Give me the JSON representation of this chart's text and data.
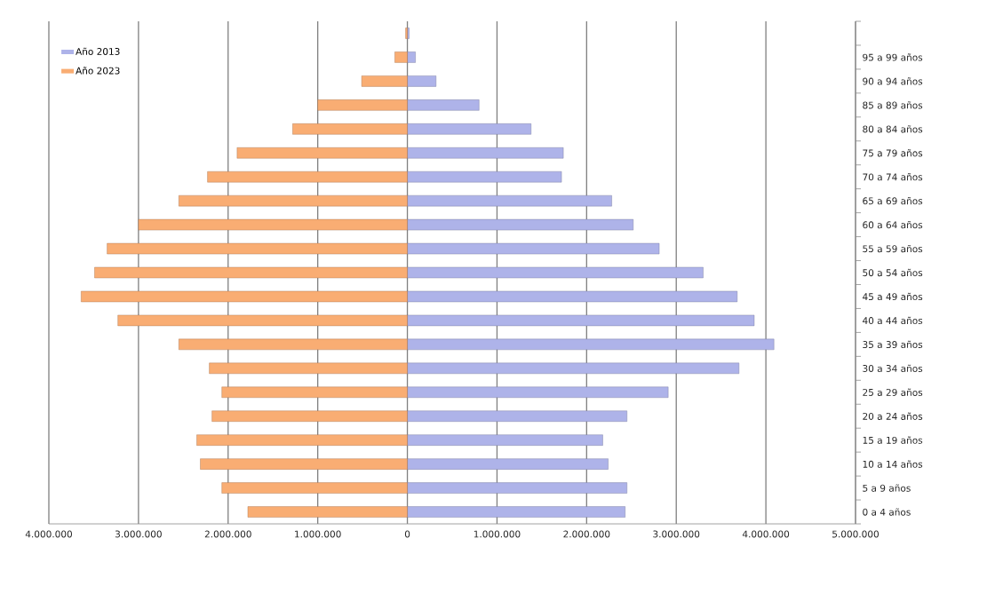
{
  "chart_data": {
    "type": "bar",
    "orientation": "horizontal",
    "stacked": true,
    "categories": [
      null,
      "95 a 99 años",
      "90 a 94 años",
      "85 a 89 años",
      "80 a 84 años",
      "75 a 79 años",
      "70 a 74 años",
      "65 a 69 años",
      "60 a 64 años",
      "55 a 59 años",
      "50 a 54 años",
      "45 a 49 años",
      "40 a 44 años",
      "35 a 39 años",
      "30 a 34 años",
      "25 a 29 años",
      "20 a 24 años",
      "15 a 19 años",
      "10 a 14 años",
      "5 a 9 años",
      "0 a 4 años"
    ],
    "series": [
      {
        "name": "Año 2013",
        "color": "#aeb3e9",
        "values": [
          20000,
          90000,
          320000,
          800000,
          1380000,
          1740000,
          1720000,
          2280000,
          2520000,
          2810000,
          3300000,
          3680000,
          3870000,
          4090000,
          3700000,
          2910000,
          2450000,
          2180000,
          2240000,
          2450000,
          2430000
        ]
      },
      {
        "name": "Año 2023",
        "color": "#f9ad73",
        "values": [
          -20000,
          -140000,
          -510000,
          -1000000,
          -1280000,
          -1900000,
          -2230000,
          -2550000,
          -3000000,
          -3350000,
          -3490000,
          -3640000,
          -3230000,
          -2550000,
          -2210000,
          -2070000,
          -2180000,
          -2350000,
          -2310000,
          -2070000,
          -1780000
        ]
      }
    ],
    "xlim": [
      -4000000,
      5000000
    ],
    "xticks": [
      {
        "value": -4000000,
        "label": "4.000.000"
      },
      {
        "value": -3000000,
        "label": "3.000.000"
      },
      {
        "value": -2000000,
        "label": "2.000.000"
      },
      {
        "value": -1000000,
        "label": "1.000.000"
      },
      0,
      {
        "value": 1000000,
        "label": "1.000.000"
      },
      {
        "value": 2000000,
        "label": "2.000.000"
      },
      {
        "value": 3000000,
        "label": "3.000.000"
      },
      {
        "value": 4000000,
        "label": "4.000.000"
      },
      {
        "value": 5000000,
        "label": "5.000.000"
      }
    ],
    "grid": "x",
    "legend": "top left"
  }
}
